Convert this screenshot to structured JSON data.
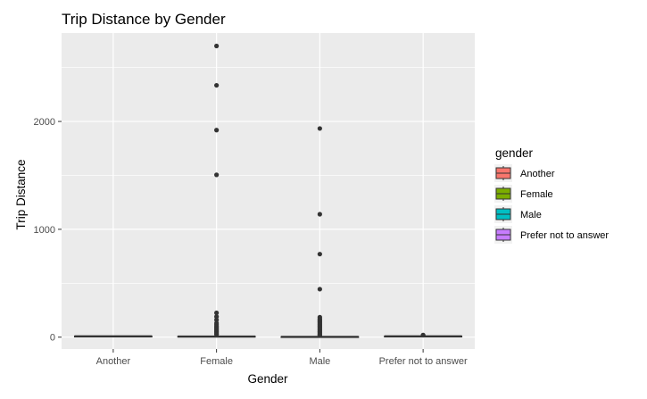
{
  "chart_data": {
    "type": "boxplot",
    "title": "Trip Distance by Gender",
    "xlabel": "Gender",
    "ylabel": "Trip Distance",
    "categories": [
      "Another",
      "Female",
      "Male",
      "Prefer not to answer"
    ],
    "ylim": [
      -110,
      2820
    ],
    "yticks": [
      0,
      1000,
      2000
    ],
    "grid": true,
    "legend": {
      "title": "gender",
      "placement": "right",
      "entries": [
        "Another",
        "Female",
        "Male",
        "Prefer not to answer"
      ]
    },
    "colors": {
      "Another": "#F8766D",
      "Female": "#7CAE00",
      "Male": "#00BFC4",
      "Prefer not to answer": "#C77CFF",
      "panel": "#EBEBEB",
      "grid": "#FFFFFF",
      "box_line": "#333333"
    },
    "boxes": [
      {
        "category": "Another",
        "min": 5,
        "q1": 6,
        "median": 8,
        "q3": 10,
        "max": 14,
        "outliers": []
      },
      {
        "category": "Female",
        "min": 2,
        "q1": 4,
        "median": 6,
        "q3": 9,
        "max": 20,
        "outliers": [
          2700,
          2335,
          1920,
          1505,
          225,
          190,
          160,
          130,
          115,
          100,
          90,
          80,
          70,
          60,
          50,
          40,
          30,
          25
        ]
      },
      {
        "category": "Male",
        "min": 1,
        "q1": 2,
        "median": 3,
        "q3": 5,
        "max": 10,
        "outliers": [
          1935,
          1140,
          770,
          445,
          185,
          170,
          160,
          150,
          140,
          130,
          120,
          110,
          100,
          90,
          80,
          70,
          60,
          50,
          40,
          30,
          20,
          15
        ]
      },
      {
        "category": "Prefer not to answer",
        "min": 4,
        "q1": 6,
        "median": 8,
        "q3": 10,
        "max": 16,
        "outliers": [
          20,
          18
        ]
      }
    ]
  }
}
